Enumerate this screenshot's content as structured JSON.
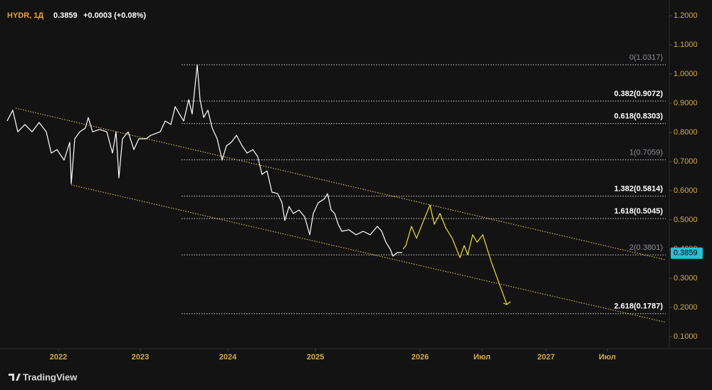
{
  "header": {
    "symbol": "HYDR, 1Д",
    "price": "0.3859",
    "change": "+0.0003 (+0.08%)"
  },
  "branding": "TradingView",
  "chart_data": {
    "type": "line",
    "xlim": [
      2021.35,
      2028.0
    ],
    "ylim": [
      0.0585,
      1.2537
    ],
    "xticks": [
      2022,
      2023,
      2024,
      2025,
      2026,
      {
        "value": 2026.5,
        "label": "Июл"
      },
      2027,
      {
        "value": 2027.5,
        "label": "Июл"
      }
    ],
    "yticks": [
      {
        "value": 0.1,
        "label": "0.1000"
      },
      {
        "value": 0.2,
        "label": "0.2000"
      },
      {
        "value": 0.3,
        "label": "0.3000"
      },
      {
        "value": 0.4,
        "label": "0.4000"
      },
      {
        "value": 0.5,
        "label": "0.5000"
      },
      {
        "value": 0.6,
        "label": "0.6000"
      },
      {
        "value": 0.7,
        "label": "0.7000"
      },
      {
        "value": 0.8,
        "label": "0.8000"
      },
      {
        "value": 0.9,
        "label": "0.9000"
      },
      {
        "value": 1.0,
        "label": "1.0000"
      },
      {
        "value": 1.1,
        "label": "1.1000"
      },
      {
        "value": 1.2,
        "label": "1.2000"
      }
    ],
    "axis_color": "#d4a94a",
    "series": [
      {
        "color": "#ffffff",
        "x": [
          2021.374,
          2021.443,
          2021.504,
          2021.591,
          2021.678,
          2021.765,
          2021.852,
          2021.913,
          2021.983,
          2022.07,
          2022.139,
          2022.157,
          2022.2,
          2022.261,
          2022.33,
          2022.365,
          2022.417,
          2022.504,
          2022.591,
          2022.661,
          2022.704,
          2022.739,
          2022.783,
          2022.852,
          2022.922,
          2022.983,
          2023.065,
          2023.122,
          2023.228,
          2023.285,
          2023.35,
          2023.398,
          2023.447,
          2023.496,
          2023.553,
          2023.593,
          2023.626,
          2023.65,
          2023.683,
          2023.724,
          2023.772,
          2023.821,
          2023.878,
          2023.935,
          2023.984,
          2024.041,
          2024.098,
          2024.163,
          2024.22,
          2024.285,
          2024.341,
          2024.39,
          2024.447,
          2024.504,
          2024.569,
          2024.618,
          2024.65,
          2024.699,
          2024.748,
          2024.813,
          2024.878,
          2024.935,
          2024.976,
          2025.027,
          2025.082,
          2025.116,
          2025.15,
          2025.184,
          2025.218,
          2025.252,
          2025.32,
          2025.388,
          2025.456,
          2025.524,
          2025.592,
          2025.633,
          2025.673,
          2025.714,
          2025.741,
          2025.782,
          2025.83
        ],
        "values": [
          0.839,
          0.876,
          0.802,
          0.827,
          0.802,
          0.834,
          0.802,
          0.729,
          0.741,
          0.705,
          0.766,
          0.624,
          0.778,
          0.802,
          0.815,
          0.851,
          0.802,
          0.81,
          0.802,
          0.729,
          0.802,
          0.644,
          0.778,
          0.802,
          0.741,
          0.778,
          0.778,
          0.79,
          0.802,
          0.839,
          0.827,
          0.888,
          0.863,
          0.839,
          0.912,
          0.863,
          0.961,
          1.0317,
          0.912,
          0.851,
          0.876,
          0.815,
          0.778,
          0.705,
          0.754,
          0.766,
          0.79,
          0.754,
          0.729,
          0.741,
          0.717,
          0.656,
          0.668,
          0.595,
          0.59,
          0.559,
          0.498,
          0.546,
          0.522,
          0.534,
          0.51,
          0.449,
          0.522,
          0.559,
          0.571,
          0.59,
          0.534,
          0.522,
          0.485,
          0.461,
          0.466,
          0.449,
          0.461,
          0.449,
          0.478,
          0.461,
          0.424,
          0.4,
          0.376,
          0.388,
          0.388
        ]
      },
      {
        "color": "#f2df3a",
        "x": [
          2025.837,
          2025.864,
          2025.918,
          2025.966,
          2026.029,
          2026.08,
          2026.115,
          2026.161,
          2026.207,
          2026.259,
          2026.322,
          2026.356,
          2026.385,
          2026.425,
          2026.46,
          2026.506,
          2026.572,
          2026.694
        ],
        "values": [
          0.4,
          0.412,
          0.478,
          0.437,
          0.498,
          0.551,
          0.485,
          0.522,
          0.473,
          0.437,
          0.371,
          0.412,
          0.381,
          0.449,
          0.424,
          0.449,
          0.356,
          0.21
        ]
      }
    ],
    "channel_color": "#e8d44d",
    "channel": [
      {
        "x": [
          2021.478,
          2027.977
        ],
        "values": [
          0.883,
          0.363
        ]
      },
      {
        "x": [
          2022.157,
          2027.977
        ],
        "values": [
          0.62,
          0.149
        ]
      }
    ],
    "fib_levels": [
      {
        "label": "0(1.0317)",
        "value": 1.0317,
        "color": "#8a8d96"
      },
      {
        "label": "0.382(0.9072)",
        "value": 0.9072,
        "color": "#ffffff"
      },
      {
        "label": "0.618(0.8303)",
        "value": 0.8303,
        "color": "#ffffff"
      },
      {
        "label": "1(0.7059)",
        "value": 0.7059,
        "color": "#8a8d96"
      },
      {
        "label": "1.382(0.5814)",
        "value": 0.5814,
        "color": "#ffffff"
      },
      {
        "label": "1.618(0.5045)",
        "value": 0.5045,
        "color": "#ffffff"
      },
      {
        "label": "2(0.3801)",
        "value": 0.3801,
        "color": "#8a8d96"
      },
      {
        "label": "2.618(0.1787)",
        "value": 0.1787,
        "color": "#ffffff"
      }
    ],
    "last_price": {
      "value": 0.3859,
      "label": "0.3859",
      "color": "#22c3d6"
    }
  }
}
